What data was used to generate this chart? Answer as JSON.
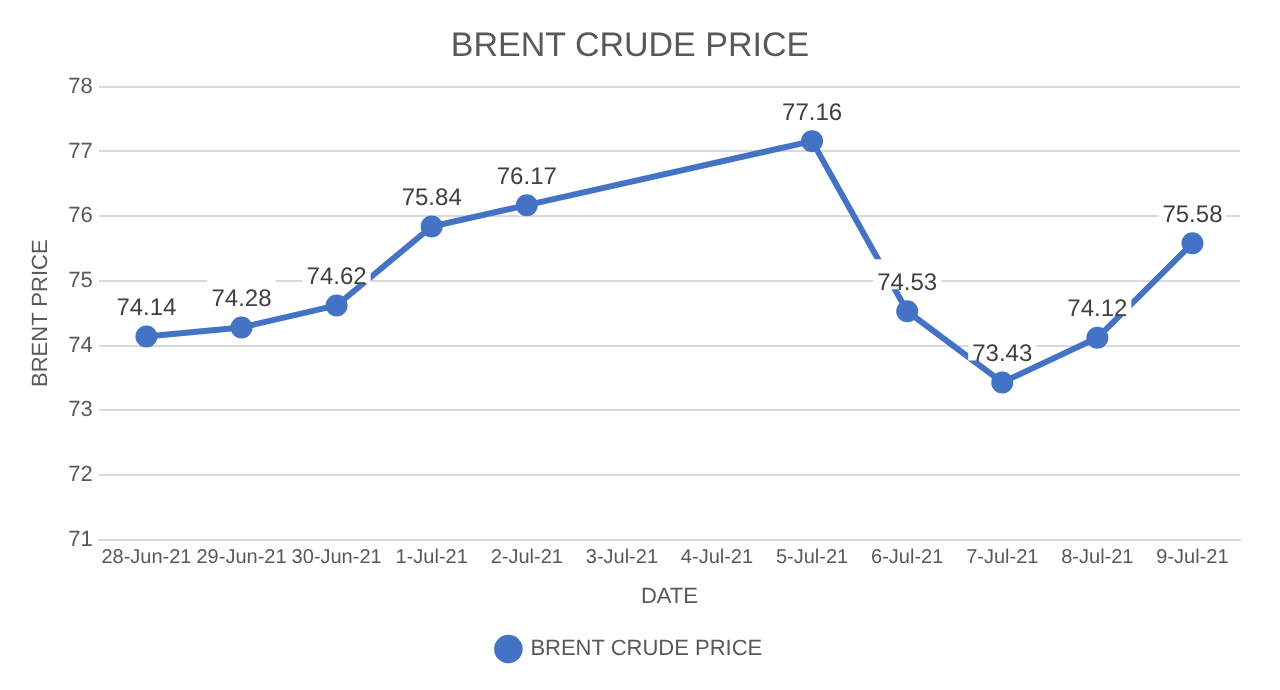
{
  "chart_data": {
    "type": "line",
    "title": "BRENT CRUDE PRICE",
    "xlabel": "DATE",
    "ylabel": "BRENT PRICE",
    "x": [
      "--06-28",
      "--06-29",
      "--06-30",
      "--07-01",
      "--07-02",
      "--07-05",
      "--07-06",
      "--07-07",
      "--07-08",
      "--07-09"
    ],
    "series": [
      {
        "name": "BRENT CRUDE PRICE",
        "color": "#4472c4",
        "values": [
          74.14,
          74.28,
          74.62,
          75.84,
          76.17,
          77.16,
          74.53,
          73.43,
          74.12,
          75.58
        ]
      }
    ],
    "xlim": [
      "--06-27T12:00",
      "--07-09T12:00"
    ],
    "xticks": [
      {
        "value": "--06-28",
        "label": "28-Jun-21"
      },
      {
        "value": "--06-29",
        "label": "29-Jun-21"
      },
      {
        "value": "--06-30",
        "label": "30-Jun-21"
      },
      {
        "value": "--07-01",
        "label": "1-Jul-21"
      },
      {
        "value": "--07-02",
        "label": "2-Jul-21"
      },
      {
        "value": "--07-03",
        "label": "3-Jul-21"
      },
      {
        "value": "--07-04",
        "label": "4-Jul-21"
      },
      {
        "value": "--07-05",
        "label": "5-Jul-21"
      },
      {
        "value": "--07-06",
        "label": "6-Jul-21"
      },
      {
        "value": "--07-07",
        "label": "7-Jul-21"
      },
      {
        "value": "--07-08",
        "label": "8-Jul-21"
      },
      {
        "value": "--07-09",
        "label": "9-Jul-21"
      }
    ],
    "ylim": [
      71,
      78
    ],
    "yticks": [
      71,
      72,
      73,
      74,
      75,
      76,
      77,
      78
    ],
    "grid": "y",
    "legend": "bottom",
    "marker": "circle",
    "line_style": "solid",
    "data_labels": true
  }
}
